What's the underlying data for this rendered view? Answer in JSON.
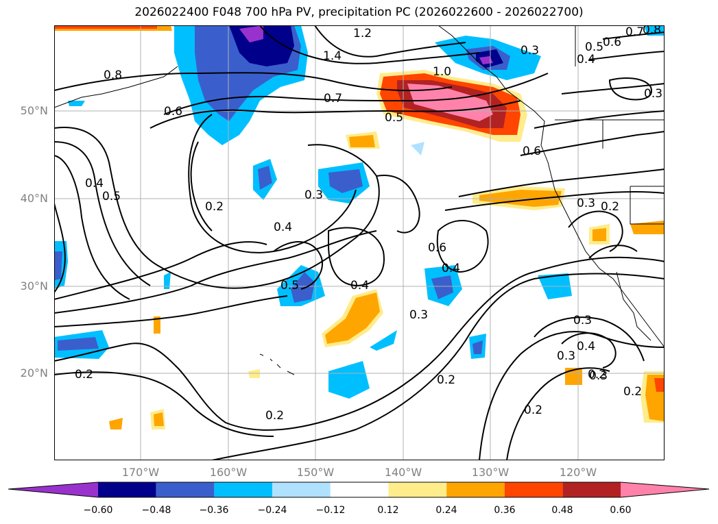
{
  "title": "2026022400 F048 700 hPa PV, precipitation PC (2026022600 - 2026022700)",
  "map": {
    "lat_labels": [
      "50°N",
      "40°N",
      "30°N",
      "20°N"
    ],
    "lon_labels": [
      "170°W",
      "160°W",
      "150°W",
      "140°W",
      "130°W",
      "120°W"
    ],
    "contour_labels": [
      "1.2",
      "1.4",
      "0.8",
      "0.7",
      "0.6",
      "0.5",
      "0.4",
      "0.3",
      "0.2",
      "1.0",
      "0.6",
      "0.4",
      "0.5",
      "0.3",
      "0.2",
      "0.4",
      "0.3",
      "0.2",
      "0.3",
      "0.2",
      "0.7",
      "0.5",
      "0.6",
      "0.4",
      "0.3",
      "0.8",
      "0.2",
      "0.3",
      "0.6",
      "0.4",
      "0.3",
      "0.2",
      "0.5",
      "0.4",
      "0.2",
      "0.3",
      "0.2"
    ],
    "land_color": "#ffffff",
    "grid_color": "#b0b0b0"
  },
  "colorbar": {
    "ticks": [
      "−0.60",
      "−0.48",
      "−0.36",
      "−0.24",
      "−0.12",
      "0.12",
      "0.24",
      "0.36",
      "0.48",
      "0.60"
    ],
    "colors": [
      "#9932cc",
      "#00008b",
      "#3a5fcd",
      "#00bfff",
      "#b0e2ff",
      "#ffffff",
      "#ffec8b",
      "#ffa500",
      "#ff4500",
      "#b22222",
      "#ff82ab"
    ]
  }
}
